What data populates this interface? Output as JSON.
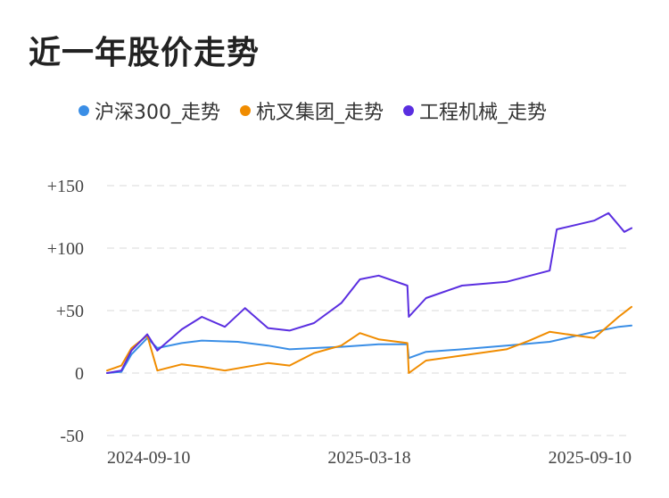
{
  "title": "近一年股价走势",
  "chart_data": {
    "type": "line",
    "ylim": [
      -50,
      150
    ],
    "y_ticks": [
      150,
      100,
      50,
      0,
      -50
    ],
    "y_tick_labels": [
      "+150",
      "+100",
      "+50",
      "0",
      "-50"
    ],
    "x_tick_labels": [
      "2024-09-10",
      "2025-03-18",
      "2025-09-10"
    ],
    "x_range": [
      "2024-09-10",
      "2025-09-10"
    ],
    "grid": true,
    "legend_position": "top",
    "series": [
      {
        "name": "沪深300_走势",
        "color": "#3a8ee6",
        "points": [
          [
            "2024-09-10",
            0
          ],
          [
            "2024-09-20",
            1
          ],
          [
            "2024-09-27",
            15
          ],
          [
            "2024-10-08",
            28
          ],
          [
            "2024-10-15",
            20
          ],
          [
            "2024-11-01",
            24
          ],
          [
            "2024-11-15",
            26
          ],
          [
            "2024-12-10",
            25
          ],
          [
            "2024-12-31",
            22
          ],
          [
            "2025-01-15",
            19
          ],
          [
            "2025-02-01",
            20
          ],
          [
            "2025-02-20",
            21
          ],
          [
            "2025-03-18",
            23
          ],
          [
            "2025-04-07",
            23
          ],
          [
            "2025-04-08",
            12
          ],
          [
            "2025-04-20",
            17
          ],
          [
            "2025-05-15",
            19
          ],
          [
            "2025-06-15",
            22
          ],
          [
            "2025-07-15",
            25
          ],
          [
            "2025-08-15",
            33
          ],
          [
            "2025-09-01",
            37
          ],
          [
            "2025-09-10",
            38
          ]
        ]
      },
      {
        "name": "杭叉集团_走势",
        "color": "#f08c00",
        "points": [
          [
            "2024-09-10",
            2
          ],
          [
            "2024-09-20",
            6
          ],
          [
            "2024-09-27",
            20
          ],
          [
            "2024-10-08",
            30
          ],
          [
            "2024-10-15",
            2
          ],
          [
            "2024-11-01",
            7
          ],
          [
            "2024-11-15",
            5
          ],
          [
            "2024-12-01",
            2
          ],
          [
            "2024-12-31",
            8
          ],
          [
            "2025-01-15",
            6
          ],
          [
            "2025-02-01",
            16
          ],
          [
            "2025-02-20",
            22
          ],
          [
            "2025-03-05",
            32
          ],
          [
            "2025-03-18",
            27
          ],
          [
            "2025-04-07",
            24
          ],
          [
            "2025-04-08",
            0
          ],
          [
            "2025-04-20",
            10
          ],
          [
            "2025-05-15",
            14
          ],
          [
            "2025-06-15",
            19
          ],
          [
            "2025-07-01",
            26
          ],
          [
            "2025-07-15",
            33
          ],
          [
            "2025-08-15",
            28
          ],
          [
            "2025-09-01",
            45
          ],
          [
            "2025-09-10",
            53
          ]
        ]
      },
      {
        "name": "工程机械_走势",
        "color": "#5a2ee0",
        "points": [
          [
            "2024-09-10",
            0
          ],
          [
            "2024-09-20",
            2
          ],
          [
            "2024-09-27",
            18
          ],
          [
            "2024-10-08",
            31
          ],
          [
            "2024-10-15",
            18
          ],
          [
            "2024-11-01",
            35
          ],
          [
            "2024-11-15",
            45
          ],
          [
            "2024-12-01",
            37
          ],
          [
            "2024-12-15",
            52
          ],
          [
            "2024-12-31",
            36
          ],
          [
            "2025-01-15",
            34
          ],
          [
            "2025-02-01",
            40
          ],
          [
            "2025-02-20",
            56
          ],
          [
            "2025-03-05",
            75
          ],
          [
            "2025-03-18",
            78
          ],
          [
            "2025-04-07",
            70
          ],
          [
            "2025-04-08",
            45
          ],
          [
            "2025-04-20",
            60
          ],
          [
            "2025-05-15",
            70
          ],
          [
            "2025-06-15",
            73
          ],
          [
            "2025-07-15",
            82
          ],
          [
            "2025-07-20",
            115
          ],
          [
            "2025-08-15",
            122
          ],
          [
            "2025-08-25",
            128
          ],
          [
            "2025-09-05",
            113
          ],
          [
            "2025-09-10",
            116
          ]
        ]
      }
    ]
  }
}
